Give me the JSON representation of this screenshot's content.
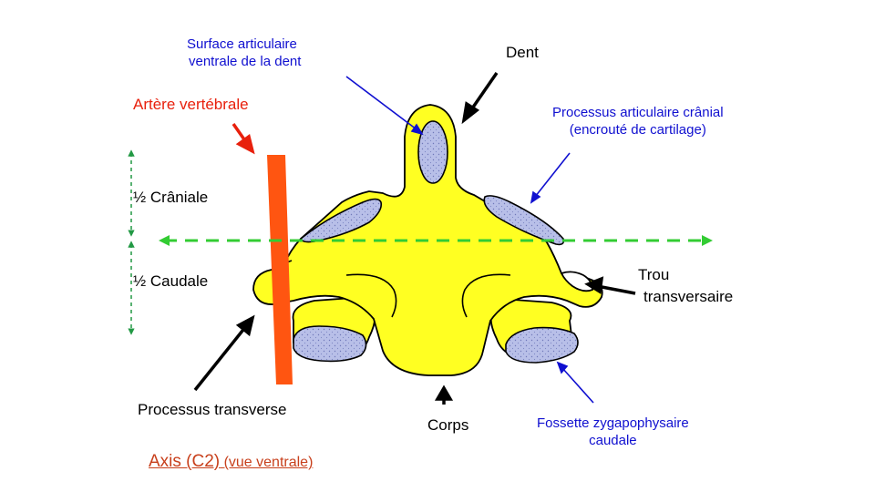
{
  "labels": {
    "surface_line1": "Surface articulaire",
    "surface_line2": "ventrale de la dent",
    "dent": "Dent",
    "artere": "Artère vertébrale",
    "proc_cranial_line1": "Processus articulaire crânial",
    "proc_cranial_line2": "(encrouté de cartilage)",
    "demi_craniale": "½ Crâniale",
    "demi_caudale": "½ Caudale",
    "trou_line1": "Trou",
    "trou_line2": "transversaire",
    "proc_transverse": "Processus transverse",
    "corps": "Corps",
    "fossette_line1": "Fossette zygapophysaire",
    "fossette_line2": "caudale"
  },
  "caption": {
    "main": "Axis (C2)",
    "sub": "(vue ventrale)"
  },
  "colors": {
    "bone": "#ffff22",
    "cartilage": "#b8bfe8",
    "artery": "#ff5511",
    "label_blue": "#1010d0",
    "label_red": "#e8200c",
    "midline_green": "#33cc33",
    "arrow_black": "#000000",
    "caption": "#c8401c"
  }
}
